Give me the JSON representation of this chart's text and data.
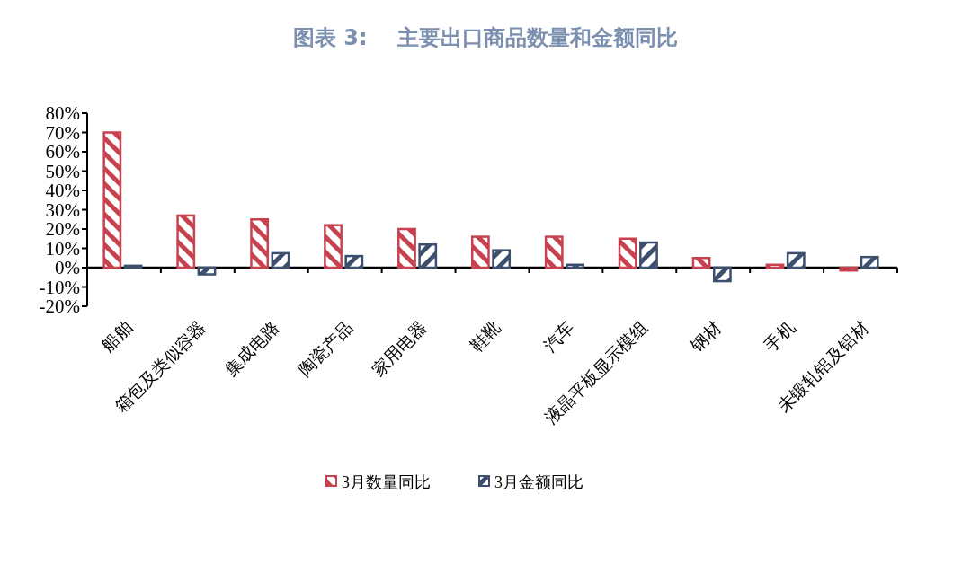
{
  "chart_data": {
    "type": "bar",
    "title": "图表 3:    主要出口商品数量和金额同比",
    "categories": [
      "船舶",
      "箱包及类似容器",
      "集成电路",
      "陶瓷产品",
      "家用电器",
      "鞋靴",
      "汽车",
      "液晶平板显示模组",
      "钢材",
      "手机",
      "未锻轧铝及铝材"
    ],
    "series": [
      {
        "name": "3月数量同比",
        "color": "#c8414f",
        "values": [
          70,
          27,
          25,
          22,
          20,
          16,
          16,
          15,
          5,
          1.5,
          -1.5
        ]
      },
      {
        "name": "3月金额同比",
        "color": "#3d4f6e",
        "values": [
          1,
          -3.5,
          7.5,
          6,
          12,
          9,
          1.5,
          13,
          -7,
          7.5,
          5.5
        ]
      }
    ],
    "ylim": [
      -20,
      80
    ],
    "yticks": [
      {
        "value": -20,
        "label": "-20%"
      },
      {
        "value": -10,
        "label": "-10%"
      },
      {
        "value": 0,
        "label": "0%"
      },
      {
        "value": 10,
        "label": "10%"
      },
      {
        "value": 20,
        "label": "20%"
      },
      {
        "value": 30,
        "label": "30%"
      },
      {
        "value": 40,
        "label": "40%"
      },
      {
        "value": 50,
        "label": "50%"
      },
      {
        "value": 60,
        "label": "60%"
      },
      {
        "value": 70,
        "label": "70%"
      },
      {
        "value": 80,
        "label": "80%"
      }
    ],
    "legend": "bottom"
  }
}
